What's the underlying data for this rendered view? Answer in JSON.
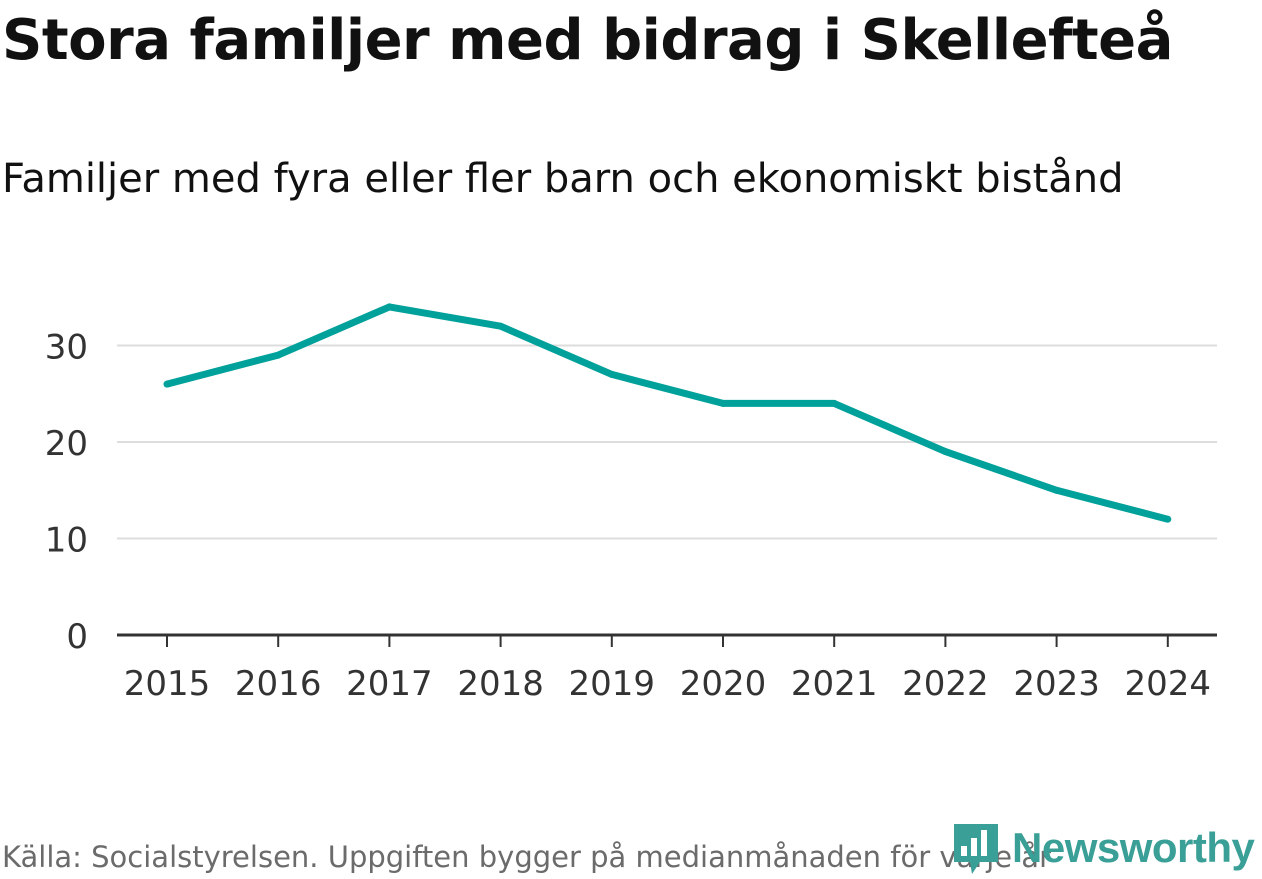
{
  "header": {
    "title": "Stora familjer med bidrag i Skellefteå",
    "subtitle": "Familjer med fyra eller fler barn och ekonomiskt bistånd"
  },
  "footer": {
    "source": "Källa: Socialstyrelsen. Uppgiften bygger på medianmånaden för varje år",
    "brand": "Newsworthy"
  },
  "colors": {
    "line": "#00a19a",
    "grid": "#dddddd",
    "axis": "#333333",
    "brand": "#3a9f96"
  },
  "chart_data": {
    "type": "line",
    "title": "Stora familjer med bidrag i Skellefteå",
    "subtitle": "Familjer med fyra eller fler barn och ekonomiskt bistånd",
    "xlabel": "",
    "ylabel": "",
    "categories": [
      "2015",
      "2016",
      "2017",
      "2018",
      "2019",
      "2020",
      "2021",
      "2022",
      "2023",
      "2024"
    ],
    "series": [
      {
        "values": [
          26,
          29,
          34,
          32,
          27,
          24,
          24,
          19,
          15,
          12
        ]
      }
    ],
    "yticks": [
      0,
      10,
      20,
      30
    ],
    "ylim": [
      0,
      36
    ],
    "grid": true,
    "legend": "none"
  }
}
